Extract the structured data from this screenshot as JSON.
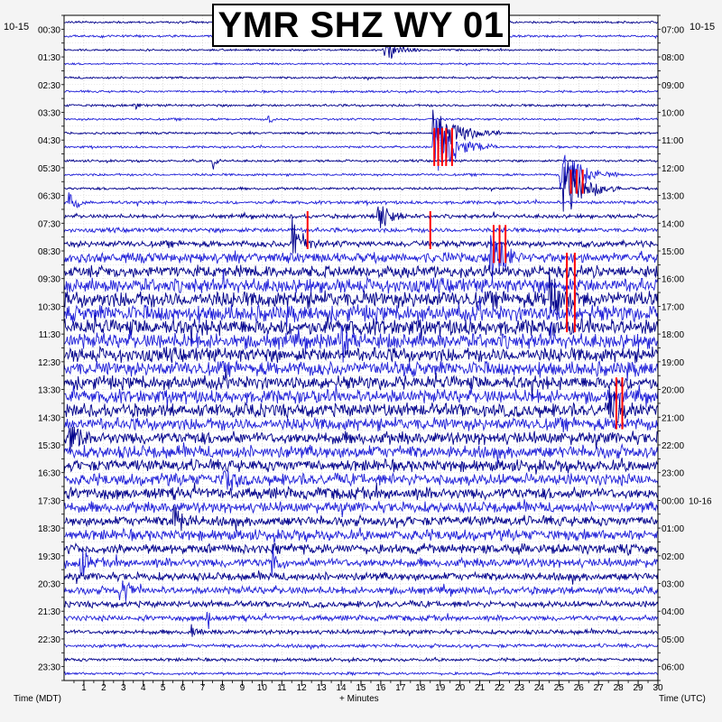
{
  "chart_data": {
    "type": "line",
    "title": "YMR SHZ WY 01",
    "date_left": "10-15",
    "date_right": "10-15",
    "date_right_change": "10-16",
    "xlabel": "+ Minutes",
    "left_axis_label": "Time (MDT)",
    "right_axis_label": "Time (UTC)",
    "x_range": [
      0,
      30
    ],
    "x_ticks": [
      "1",
      "2",
      "3",
      "4",
      "5",
      "6",
      "7",
      "8",
      "9",
      "10",
      "11",
      "12",
      "13",
      "14",
      "15",
      "16",
      "17",
      "18",
      "19",
      "20",
      "21",
      "22",
      "23",
      "24",
      "25",
      "26",
      "27",
      "28",
      "29",
      "30"
    ],
    "rows_count": 48,
    "minutes_per_row": 30,
    "left_ticks": [
      "00:30",
      "01:30",
      "02:30",
      "03:30",
      "04:30",
      "05:30",
      "06:30",
      "07:30",
      "08:30",
      "09:30",
      "10:30",
      "11:30",
      "12:30",
      "13:30",
      "14:30",
      "15:30",
      "16:30",
      "17:30",
      "18:30",
      "19:30",
      "20:30",
      "21:30",
      "22:30",
      "23:30"
    ],
    "right_ticks": [
      "07:00",
      "08:00",
      "09:00",
      "10:00",
      "11:00",
      "12:00",
      "13:00",
      "14:00",
      "15:00",
      "16:00",
      "17:00",
      "18:00",
      "19:00",
      "20:00",
      "21:00",
      "22:00",
      "23:00",
      "00:00",
      "01:00",
      "02:00",
      "03:00",
      "04:00",
      "05:00",
      "06:00"
    ],
    "trace_colors": [
      "#00008b",
      "#2020d8"
    ],
    "clip_color": "#ff0000",
    "grid": true,
    "row_noise_level": [
      0.12,
      0.12,
      0.1,
      0.1,
      0.12,
      0.12,
      0.14,
      0.12,
      0.12,
      0.12,
      0.13,
      0.13,
      0.14,
      0.18,
      0.22,
      0.25,
      0.35,
      0.55,
      0.65,
      0.8,
      0.9,
      0.9,
      0.9,
      0.85,
      0.8,
      0.8,
      0.75,
      0.75,
      0.75,
      0.7,
      0.7,
      0.7,
      0.65,
      0.65,
      0.65,
      0.6,
      0.55,
      0.6,
      0.55,
      0.5,
      0.45,
      0.42,
      0.35,
      0.3,
      0.25,
      0.2,
      0.18,
      0.15
    ],
    "events": [
      {
        "row": 2,
        "minute": 16.1,
        "amp": 1.0,
        "dur": 2.0
      },
      {
        "row": 6,
        "minute": 3.5,
        "amp": 0.7,
        "dur": 0.5
      },
      {
        "row": 7,
        "minute": 10.3,
        "amp": 0.6,
        "dur": 0.4
      },
      {
        "row": 8,
        "minute": 18.6,
        "amp": 2.0,
        "dur": 3.5
      },
      {
        "row": 9,
        "minute": 18.6,
        "amp": 2.2,
        "dur": 3.5
      },
      {
        "row": 10,
        "minute": 7.5,
        "amp": 1.0,
        "dur": 0.5
      },
      {
        "row": 11,
        "minute": 25.0,
        "amp": 2.2,
        "dur": 3.0
      },
      {
        "row": 12,
        "minute": 25.2,
        "amp": 2.4,
        "dur": 3.0
      },
      {
        "row": 13,
        "minute": 0.2,
        "amp": 1.2,
        "dur": 1.0
      },
      {
        "row": 14,
        "minute": 15.8,
        "amp": 1.5,
        "dur": 1.5
      },
      {
        "row": 16,
        "minute": 11.5,
        "amp": 2.0,
        "dur": 1.5
      },
      {
        "row": 17,
        "minute": 21.5,
        "amp": 2.0,
        "dur": 2.0
      },
      {
        "row": 20,
        "minute": 24.5,
        "amp": 2.0,
        "dur": 2.0
      },
      {
        "row": 23,
        "minute": 14.0,
        "amp": 1.5,
        "dur": 1.0
      },
      {
        "row": 28,
        "minute": 27.5,
        "amp": 2.0,
        "dur": 1.5
      },
      {
        "row": 30,
        "minute": 0.2,
        "amp": 1.5,
        "dur": 1.0
      },
      {
        "row": 33,
        "minute": 8.0,
        "amp": 1.4,
        "dur": 1.0
      },
      {
        "row": 36,
        "minute": 5.5,
        "amp": 1.3,
        "dur": 1.2
      },
      {
        "row": 39,
        "minute": 0.8,
        "amp": 1.4,
        "dur": 0.8
      },
      {
        "row": 39,
        "minute": 10.5,
        "amp": 1.6,
        "dur": 0.8
      },
      {
        "row": 41,
        "minute": 2.8,
        "amp": 1.5,
        "dur": 1.0
      },
      {
        "row": 43,
        "minute": 7.2,
        "amp": 1.2,
        "dur": 0.6
      },
      {
        "row": 44,
        "minute": 6.4,
        "amp": 1.0,
        "dur": 0.6
      }
    ],
    "clipped": [
      {
        "row_start": 8,
        "row_end": 10,
        "minutes": [
          18.7,
          18.9,
          19.1,
          19.3,
          19.6
        ]
      },
      {
        "row_start": 11,
        "row_end": 12,
        "minutes": [
          25.6,
          25.9,
          26.2
        ]
      },
      {
        "row_start": 14,
        "row_end": 16,
        "minutes": [
          12.3,
          18.5
        ]
      },
      {
        "row_start": 15,
        "row_end": 17,
        "minutes": [
          21.7,
          22.0,
          22.3
        ]
      },
      {
        "row_start": 17,
        "row_end": 22,
        "minutes": [
          25.4,
          25.8
        ]
      },
      {
        "row_start": 26,
        "row_end": 29,
        "minutes": [
          27.9,
          28.2
        ]
      }
    ]
  }
}
